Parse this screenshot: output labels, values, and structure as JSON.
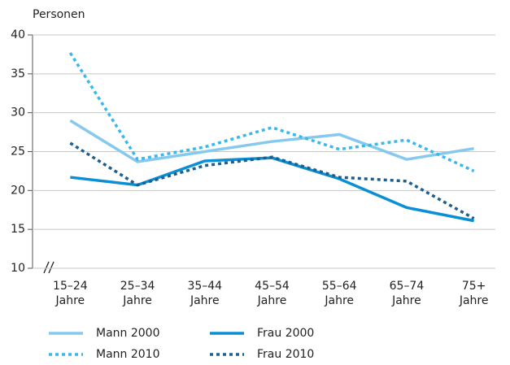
{
  "chart_data": {
    "type": "line",
    "y_label": "Personen",
    "categories": [
      "15–24 Jahre",
      "25–34 Jahre",
      "35–44 Jahre",
      "45–54 Jahre",
      "55–64 Jahre",
      "65–74 Jahre",
      "75+ Jahre"
    ],
    "series": [
      {
        "name": "Mann 2000",
        "color": "#86c9ee",
        "style": "solid",
        "values": [
          29.0,
          23.7,
          25.0,
          26.3,
          27.2,
          24.0,
          25.4
        ]
      },
      {
        "name": "Frau 2000",
        "color": "#0a8fd4",
        "style": "solid",
        "values": [
          21.7,
          20.7,
          23.8,
          24.2,
          21.5,
          17.8,
          16.1
        ]
      },
      {
        "name": "Mann 2010",
        "color": "#38b9ec",
        "style": "dotted",
        "values": [
          37.7,
          24.0,
          25.6,
          28.1,
          25.3,
          26.5,
          22.5
        ]
      },
      {
        "name": "Frau 2010",
        "color": "#1f5f8f",
        "style": "dotted",
        "values": [
          26.1,
          20.7,
          23.2,
          24.3,
          21.7,
          21.2,
          16.4
        ]
      }
    ],
    "ylim": [
      10,
      40
    ],
    "yticks": [
      10,
      15,
      20,
      25,
      30,
      35,
      40
    ],
    "grid": true
  }
}
